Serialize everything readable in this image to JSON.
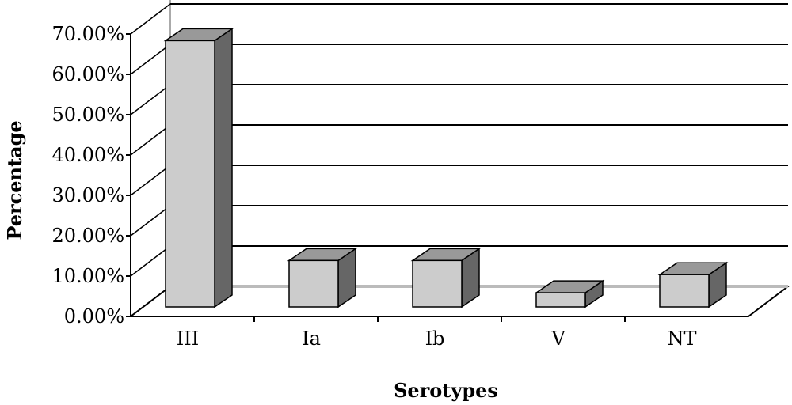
{
  "chart_data": {
    "type": "bar",
    "xlabel": "Serotypes",
    "ylabel": "Percentage",
    "categories": [
      "III",
      "Ia",
      "Ib",
      "V",
      "NT"
    ],
    "values": [
      66,
      11.5,
      11.5,
      3.5,
      8
    ],
    "ylim": [
      0,
      70
    ],
    "yticks": [
      "0.00%",
      "10.00%",
      "20.00%",
      "30.00%",
      "40.00%",
      "50.00%",
      "60.00%",
      "70.00%"
    ],
    "grid": true,
    "colors": {
      "bar_front": "#cccccc",
      "bar_side": "#666666",
      "bar_top": "#999999",
      "grid": "#000000",
      "floor": "#bbbbbb",
      "wall": "#aaaaaa"
    }
  }
}
